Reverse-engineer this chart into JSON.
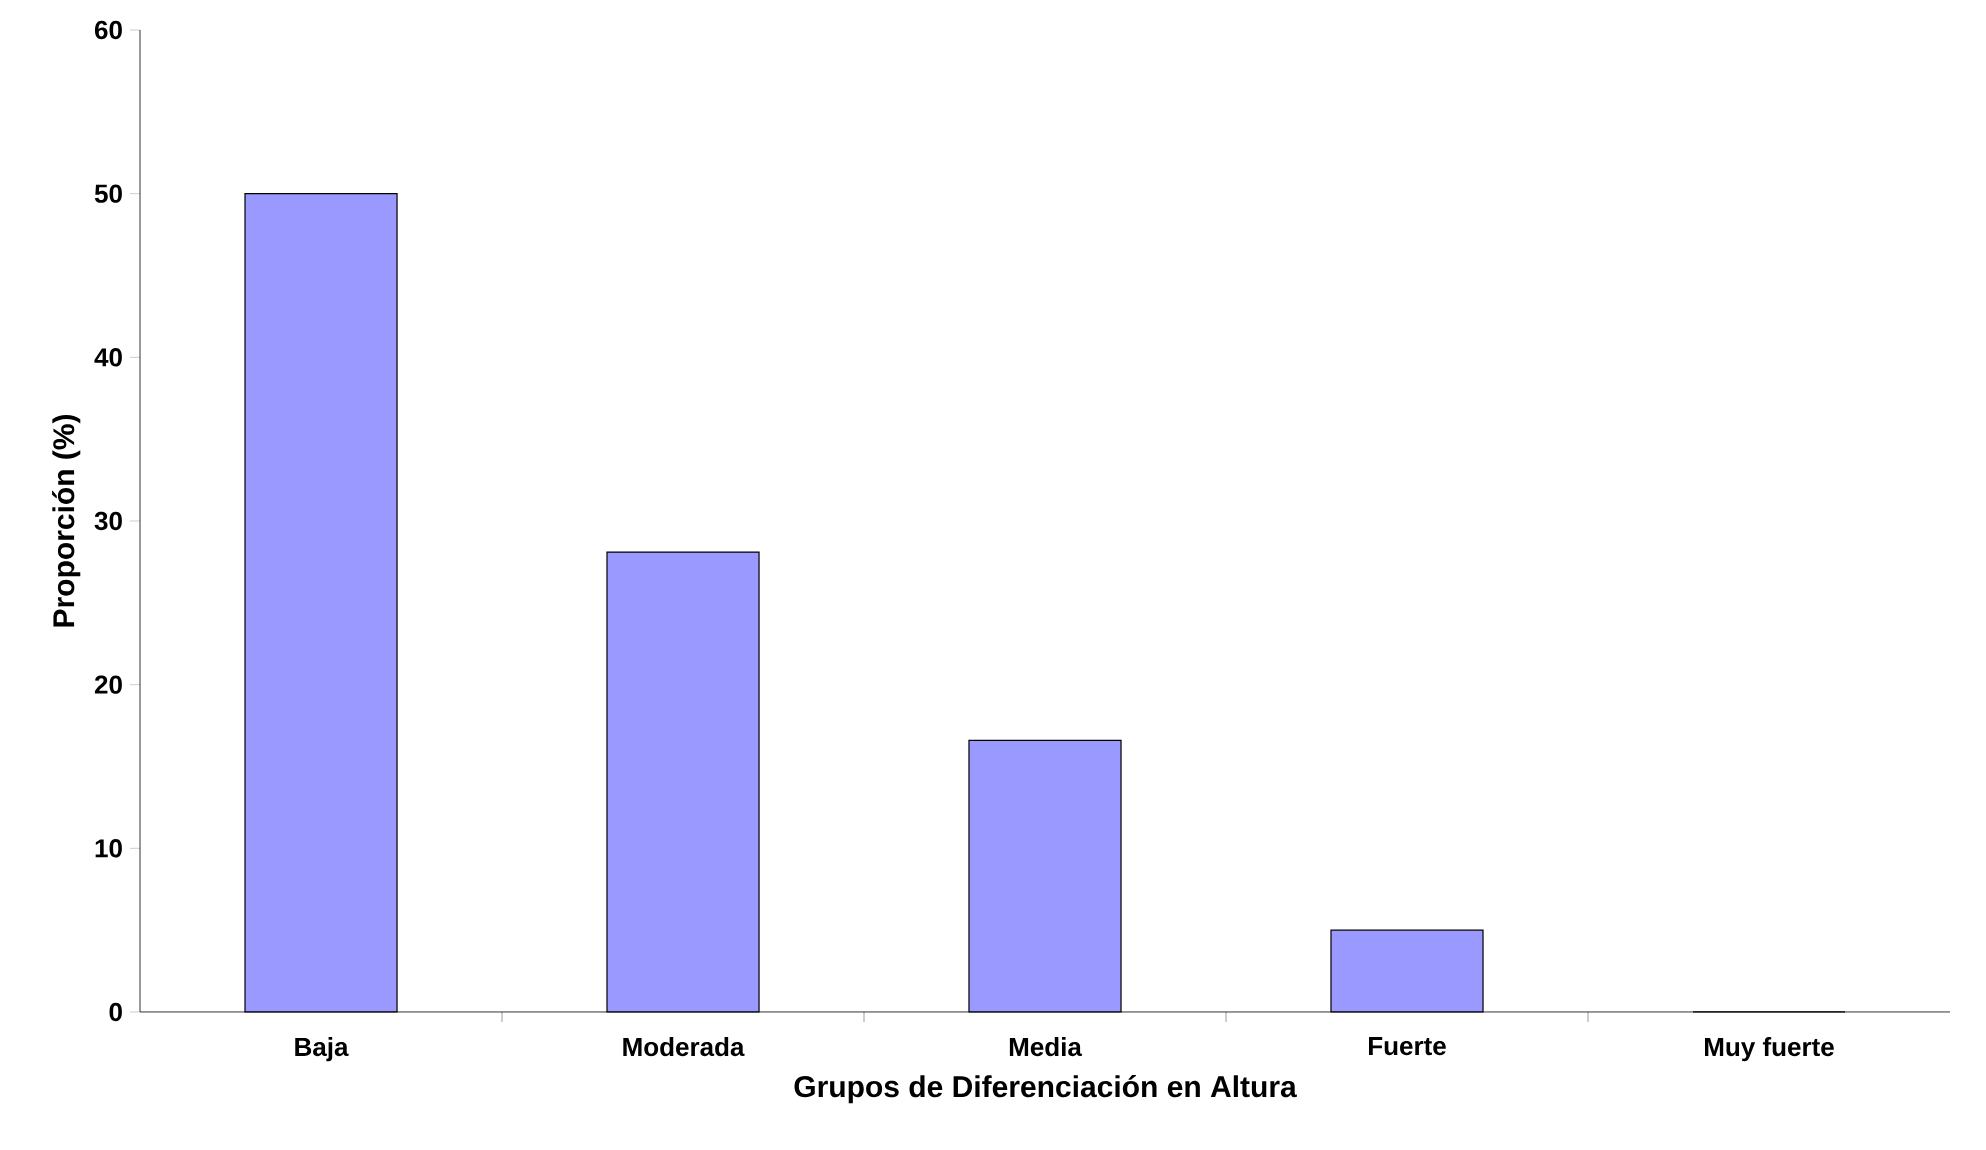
{
  "chart_data": {
    "type": "bar",
    "xlabel": "Grupos de Diferenciación en Altura",
    "ylabel": "Proporción (%)",
    "categories": [
      "Baja",
      "Moderada",
      "Media",
      "Fuerte",
      "Muy fuerte"
    ],
    "values": [
      50,
      28.1,
      16.6,
      5,
      0
    ],
    "color": "#9999ff",
    "ylim": [
      0,
      60
    ],
    "yticks": [
      0,
      10,
      20,
      30,
      40,
      50,
      60
    ]
  }
}
